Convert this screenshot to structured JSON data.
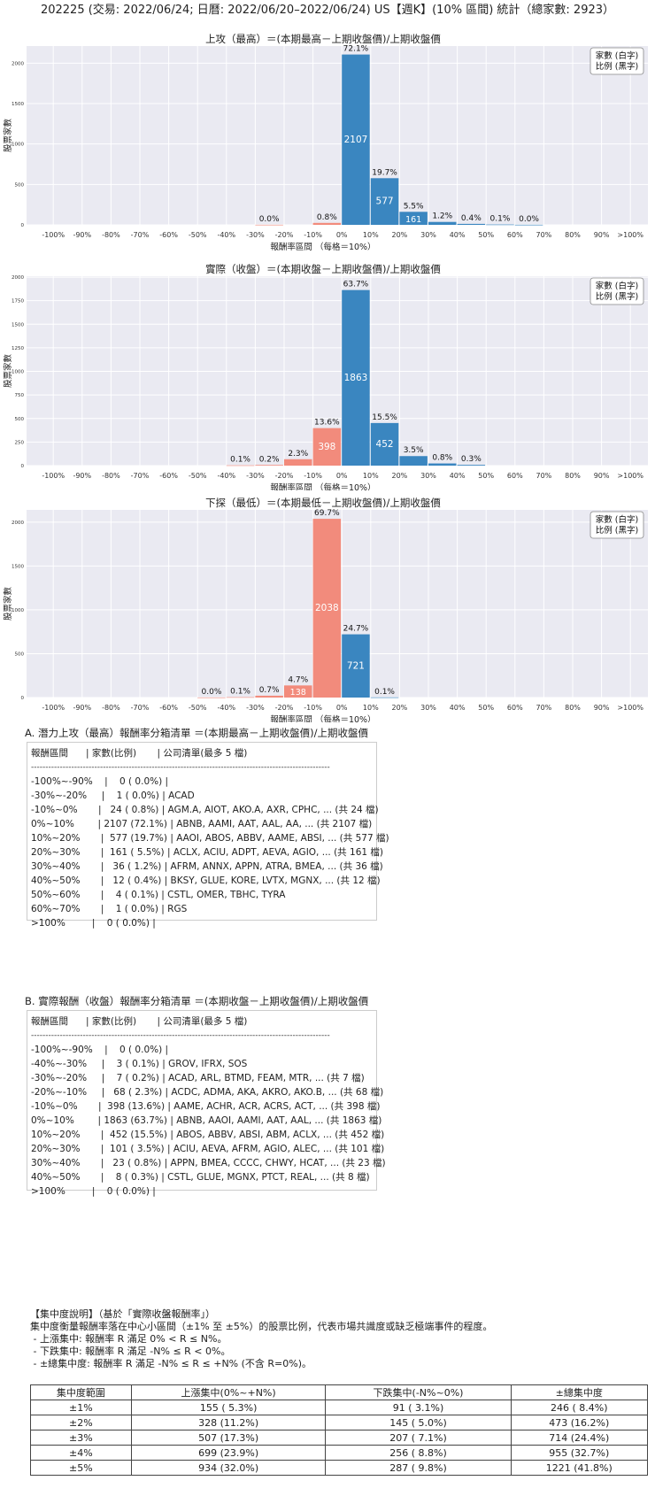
{
  "header": {
    "title": "202225 (交易: 2022/06/24; 日曆: 2022/06/20–2022/06/24) US【週K】(10% 區間) 統計（總家數: 2923）"
  },
  "chart_data": [
    {
      "type": "bar",
      "title": "上攻（最高）＝(本期最高－上期收盤價)/上期收盤價",
      "xlabel": "報酬率區間 （每格＝10%）",
      "ylabel": "股票家數",
      "legend": [
        "家數 (白字)",
        "比例 (黑字)"
      ],
      "legend_position": "top-right",
      "categories": [
        "-100%",
        "-90%",
        "-80%",
        "-70%",
        "-60%",
        "-50%",
        "-40%",
        "-30%",
        "-20%",
        "-10%",
        "0%",
        "10%",
        "20%",
        "30%",
        "40%",
        "50%",
        "60%",
        "70%",
        "80%",
        "90%",
        ">100%"
      ],
      "yticks": [
        0,
        500,
        1000,
        1500,
        2000
      ],
      "ylim": [
        0,
        2212
      ],
      "bars": [
        {
          "x": -30,
          "count": 1,
          "pct": "0.0%",
          "side": "neg"
        },
        {
          "x": -10,
          "count": 24,
          "pct": "0.8%",
          "side": "neg"
        },
        {
          "x": 0,
          "count": 2107,
          "pct": "72.1%",
          "side": "pos"
        },
        {
          "x": 10,
          "count": 577,
          "pct": "19.7%",
          "side": "pos"
        },
        {
          "x": 20,
          "count": 161,
          "pct": "5.5%",
          "side": "pos"
        },
        {
          "x": 30,
          "count": 36,
          "pct": "1.2%",
          "side": "pos"
        },
        {
          "x": 40,
          "count": 12,
          "pct": "0.4%",
          "side": "pos"
        },
        {
          "x": 50,
          "count": 4,
          "pct": "0.1%",
          "side": "pos"
        },
        {
          "x": 60,
          "count": 1,
          "pct": "0.0%",
          "side": "pos"
        }
      ]
    },
    {
      "type": "bar",
      "title": "實際（收盤）＝(本期收盤－上期收盤價)/上期收盤價",
      "xlabel": "報酬率區間 （每格＝10%）",
      "ylabel": "股票家數",
      "legend": [
        "家數 (白字)",
        "比例 (黑字)"
      ],
      "legend_position": "top-right",
      "categories": [
        "-100%",
        "-90%",
        "-80%",
        "-70%",
        "-60%",
        "-50%",
        "-40%",
        "-30%",
        "-20%",
        "-10%",
        "0%",
        "10%",
        "20%",
        "30%",
        "40%",
        "50%",
        "60%",
        "70%",
        "80%",
        "90%",
        ">100%"
      ],
      "yticks": [
        0,
        250,
        500,
        750,
        1000,
        1250,
        1500,
        1750,
        2000
      ],
      "ylim": [
        0,
        2010
      ],
      "bars": [
        {
          "x": -40,
          "count": 3,
          "pct": "0.1%",
          "side": "neg"
        },
        {
          "x": -30,
          "count": 7,
          "pct": "0.2%",
          "side": "neg"
        },
        {
          "x": -20,
          "count": 68,
          "pct": "2.3%",
          "side": "neg"
        },
        {
          "x": -10,
          "count": 398,
          "pct": "13.6%",
          "side": "neg"
        },
        {
          "x": 0,
          "count": 1863,
          "pct": "63.7%",
          "side": "pos"
        },
        {
          "x": 10,
          "count": 452,
          "pct": "15.5%",
          "side": "pos"
        },
        {
          "x": 20,
          "count": 101,
          "pct": "3.5%",
          "side": "pos"
        },
        {
          "x": 30,
          "count": 23,
          "pct": "0.8%",
          "side": "pos"
        },
        {
          "x": 40,
          "count": 8,
          "pct": "0.3%",
          "side": "pos"
        }
      ]
    },
    {
      "type": "bar",
      "title": "下探（最低）＝(本期最低－上期收盤價)/上期收盤價",
      "xlabel": "報酬率區間 （每格＝10%）",
      "ylabel": "股票家數",
      "legend": [
        "家數 (白字)",
        "比例 (黑字)"
      ],
      "legend_position": "top-right",
      "categories": [
        "-100%",
        "-90%",
        "-80%",
        "-70%",
        "-60%",
        "-50%",
        "-40%",
        "-30%",
        "-20%",
        "-10%",
        "0%",
        "10%",
        "20%",
        "30%",
        "40%",
        "50%",
        "60%",
        "70%",
        "80%",
        "90%",
        ">100%"
      ],
      "yticks": [
        0,
        500,
        1000,
        1500,
        2000
      ],
      "ylim": [
        0,
        2140
      ],
      "bars": [
        {
          "x": -50,
          "count": 1,
          "pct": "0.0%",
          "side": "neg"
        },
        {
          "x": -40,
          "count": 4,
          "pct": "0.1%",
          "side": "neg"
        },
        {
          "x": -30,
          "count": 21,
          "pct": "0.7%",
          "side": "neg"
        },
        {
          "x": -20,
          "count": 138,
          "pct": "4.7%",
          "side": "neg"
        },
        {
          "x": -10,
          "count": 2038,
          "pct": "69.7%",
          "side": "neg"
        },
        {
          "x": 0,
          "count": 721,
          "pct": "24.7%",
          "side": "pos"
        },
        {
          "x": 10,
          "count": 2,
          "pct": "0.1%",
          "side": "pos"
        }
      ]
    }
  ],
  "list_a": {
    "heading": "A. 潛力上攻（最高）報酬率分箱清單 ＝(本期最高－上期收盤價)/上期收盤價",
    "header": "報酬區間      | 家數(比例)       | 公司清單(最多 5 檔)",
    "separator": "--------------------------------------------------------------------------------------------------------",
    "rows": [
      "-100%~-90%    |    0 ( 0.0%) |",
      "-30%~-20%     |    1 ( 0.0%) | ACAD",
      "-10%~0%       |   24 ( 0.8%) | AGM.A, AIOT, AKO.A, AXR, CPHC, ... (共 24 檔)",
      "0%~10%        | 2107 (72.1%) | ABNB, AAMI, AAT, AAL, AA, ... (共 2107 檔)",
      "10%~20%       |  577 (19.7%) | AAOI, ABOS, ABBV, AAME, ABSI, ... (共 577 檔)",
      "20%~30%       |  161 ( 5.5%) | ACLX, ACIU, ADPT, AEVA, AGIO, ... (共 161 檔)",
      "30%~40%       |   36 ( 1.2%) | AFRM, ANNX, APPN, ATRA, BMEA, ... (共 36 檔)",
      "40%~50%       |   12 ( 0.4%) | BKSY, GLUE, KORE, LVTX, MGNX, ... (共 12 檔)",
      "50%~60%       |    4 ( 0.1%) | CSTL, OMER, TBHC, TYRA",
      "60%~70%       |    1 ( 0.0%) | RGS",
      ">100%         |    0 ( 0.0%) |"
    ]
  },
  "list_b": {
    "heading": "B. 實際報酬（收盤）報酬率分箱清單 ＝(本期收盤－上期收盤價)/上期收盤價",
    "header": "報酬區間      | 家數(比例)       | 公司清單(最多 5 檔)",
    "separator": "--------------------------------------------------------------------------------------------------------",
    "rows": [
      "-100%~-90%    |    0 ( 0.0%) |",
      "-40%~-30%     |    3 ( 0.1%) | GROV, IFRX, SOS",
      "-30%~-20%     |    7 ( 0.2%) | ACAD, ARL, BTMD, FEAM, MTR, ... (共 7 檔)",
      "-20%~-10%     |   68 ( 2.3%) | ACDC, ADMA, AKA, AKRO, AKO.B, ... (共 68 檔)",
      "-10%~0%       |  398 (13.6%) | AAME, ACHR, ACR, ACRS, ACT, ... (共 398 檔)",
      "0%~10%        | 1863 (63.7%) | ABNB, AAOI, AAMI, AAT, AAL, ... (共 1863 檔)",
      "10%~20%       |  452 (15.5%) | ABOS, ABBV, ABSI, ABM, ACLX, ... (共 452 檔)",
      "20%~30%       |  101 ( 3.5%) | ACIU, AEVA, AFRM, AGIO, ALEC, ... (共 101 檔)",
      "30%~40%       |   23 ( 0.8%) | APPN, BMEA, CCCC, CHWY, HCAT, ... (共 23 檔)",
      "40%~50%       |    8 ( 0.3%) | CSTL, GLUE, MGNX, PTCT, REAL, ... (共 8 檔)",
      ">100%         |    0 ( 0.0%) |"
    ]
  },
  "concentration": {
    "lines": [
      "【集中度說明】（基於「實際收盤報酬率」）",
      "集中度衡量報酬率落在中心小區間（±1% 至 ±5%）的股票比例，代表市場共識度或缺乏極端事件的程度。",
      " - 上漲集中: 報酬率 R 滿足 0% < R ≤ N%。",
      " - 下跌集中: 報酬率 R 滿足 -N% ≤ R < 0%。",
      " - ±總集中度: 報酬率 R 滿足 -N% ≤ R ≤ +N% (不含 R=0%)。"
    ],
    "table": {
      "headers": [
        "集中度範圍",
        "上漲集中(0%~+N%)",
        "下跌集中(-N%~0%)",
        "±總集中度"
      ],
      "rows": [
        [
          "±1%",
          "155 ( 5.3%)",
          "91 ( 3.1%)",
          "246 ( 8.4%)"
        ],
        [
          "±2%",
          "328 (11.2%)",
          "145 ( 5.0%)",
          "473 (16.2%)"
        ],
        [
          "±3%",
          "507 (17.3%)",
          "207 ( 7.1%)",
          "714 (24.4%)"
        ],
        [
          "±4%",
          "699 (23.9%)",
          "256 ( 8.8%)",
          "955 (32.7%)"
        ],
        [
          "±5%",
          "934 (32.0%)",
          "287 ( 9.8%)",
          "1221 (41.8%)"
        ]
      ]
    }
  },
  "colors": {
    "pos": "#3a86c0",
    "neg": "#f28b7c",
    "plot_bg": "#eaeaf2",
    "grid": "#ffffff"
  }
}
